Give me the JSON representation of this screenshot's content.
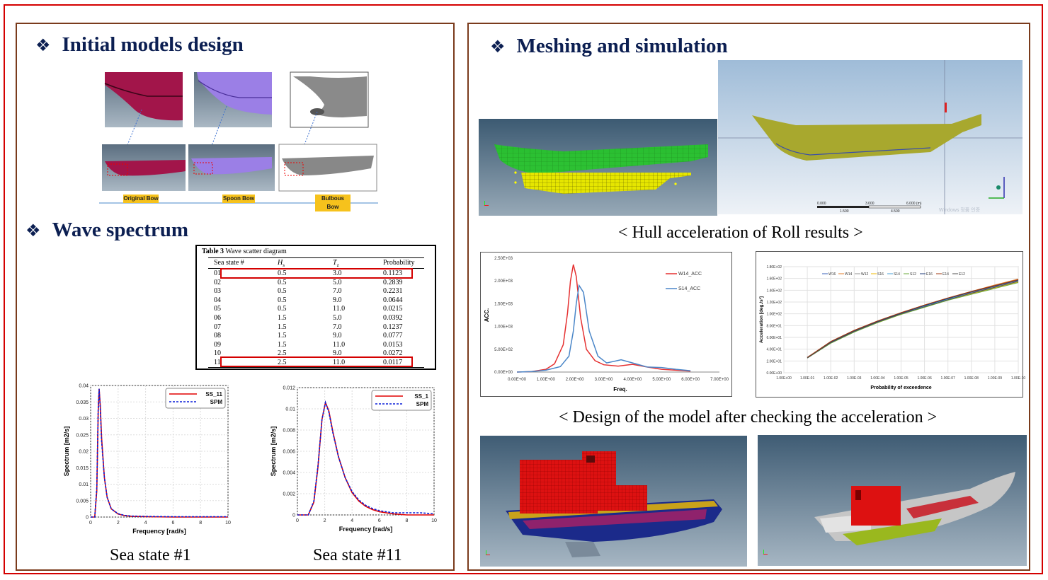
{
  "left_panel": {
    "title_models": "Initial models design",
    "title_wave": "Wave spectrum",
    "bullet": "❖",
    "bow_labels": [
      "Original Bow",
      "Spoon Bow",
      "Bulbous Bow"
    ],
    "caption_ss1": "Sea state #1",
    "caption_ss11": "Sea state #11"
  },
  "wave_table": {
    "title_bold": "Table 3",
    "title_rest": "Wave scatter diagram",
    "headers": [
      "Sea  state  #",
      "H",
      "T",
      "Probability"
    ],
    "header_subs": [
      "s",
      "z"
    ],
    "rows": [
      [
        "01",
        "0.5",
        "3.0",
        "0.1123"
      ],
      [
        "02",
        "0.5",
        "5.0",
        "0.2839"
      ],
      [
        "03",
        "0.5",
        "7.0",
        "0.2231"
      ],
      [
        "04",
        "0.5",
        "9.0",
        "0.0644"
      ],
      [
        "05",
        "0.5",
        "11.0",
        "0.0215"
      ],
      [
        "06",
        "1.5",
        "5.0",
        "0.0392"
      ],
      [
        "07",
        "1.5",
        "7.0",
        "0.1237"
      ],
      [
        "08",
        "1.5",
        "9.0",
        "0.0777"
      ],
      [
        "09",
        "1.5",
        "11.0",
        "0.0153"
      ],
      [
        "10",
        "2.5",
        "9.0",
        "0.0272"
      ],
      [
        "11",
        "2.5",
        "11.0",
        "0.0117"
      ]
    ],
    "highlighted_rows": [
      "01",
      "11"
    ],
    "highlight_color": "#d40000"
  },
  "right_panel": {
    "title": "Meshing and simulation",
    "caption_roll": "< Hull acceleration of Roll results >",
    "caption_design": "< Design of the model after checking the acceleration >",
    "scale_labels": [
      "0.000",
      "3.000",
      "6.000 (m)",
      "1.500",
      "4.500"
    ],
    "watermark": "Windows 정품 인증"
  },
  "chart_data": [
    {
      "type": "line",
      "id": "spectrum-ss1",
      "xlabel": "Frequency [rad/s]",
      "ylabel": "Spectrum [m2/s]",
      "xlim": [
        0,
        10
      ],
      "ylim": [
        0,
        0.04
      ],
      "x_ticks": [
        "0",
        "2",
        "4",
        "6",
        "8",
        "10"
      ],
      "y_ticks": [
        "0",
        "0.005",
        "0.01",
        "0.015",
        "0.02",
        "0.025",
        "0.03",
        "0.035",
        "0.04"
      ],
      "legend": "top-right",
      "x": [
        0,
        0.3,
        0.45,
        0.55,
        0.62,
        0.7,
        0.8,
        1.0,
        1.2,
        1.5,
        2.0,
        2.5,
        3,
        4,
        6,
        8,
        10
      ],
      "series": [
        {
          "name": "SS_11",
          "color": "#e00000",
          "style": "solid",
          "values": [
            0,
            0,
            0.008,
            0.032,
            0.039,
            0.034,
            0.024,
            0.012,
            0.006,
            0.0025,
            0.0009,
            0.0004,
            0.0002,
            0.0001,
            0,
            0,
            0
          ]
        },
        {
          "name": "SPM",
          "color": "#0a1fd8",
          "style": "dashed",
          "values": [
            0,
            0,
            0.009,
            0.033,
            0.039,
            0.033,
            0.023,
            0.012,
            0.006,
            0.0025,
            0.001,
            0.0005,
            0.0003,
            0.0002,
            0.0001,
            0.0001,
            0.0001
          ]
        }
      ]
    },
    {
      "type": "line",
      "id": "spectrum-ss11",
      "xlabel": "Frequency [rad/s]",
      "ylabel": "Spectrum [m2/s]",
      "xlim": [
        0,
        10
      ],
      "ylim": [
        0,
        0.012
      ],
      "x_ticks": [
        "0",
        "2",
        "4",
        "6",
        "8",
        "10"
      ],
      "y_ticks": [
        "0",
        "0.002",
        "0.004",
        "0.006",
        "0.008",
        "0.01",
        "0.012"
      ],
      "legend": "top-right",
      "x": [
        0,
        0.8,
        1.2,
        1.5,
        1.8,
        2.05,
        2.3,
        2.6,
        3.0,
        3.5,
        4,
        4.5,
        5,
        5.5,
        6,
        7,
        8,
        9,
        10
      ],
      "series": [
        {
          "name": "SS_1",
          "color": "#e00000",
          "style": "solid",
          "values": [
            0,
            0,
            0.0012,
            0.0045,
            0.009,
            0.0106,
            0.0098,
            0.0078,
            0.0055,
            0.0035,
            0.0021,
            0.0013,
            0.0008,
            0.0005,
            0.0003,
            0.0001,
            0,
            0,
            0
          ]
        },
        {
          "name": "SPM",
          "color": "#0a1fd8",
          "style": "dashed",
          "values": [
            0,
            0,
            0.0013,
            0.0046,
            0.009,
            0.0106,
            0.0097,
            0.0077,
            0.0055,
            0.0035,
            0.0022,
            0.0014,
            0.0009,
            0.0006,
            0.0004,
            0.0002,
            0.0002,
            0.0002,
            0.0001
          ]
        }
      ]
    },
    {
      "type": "line",
      "id": "roll-acc",
      "xlabel": "Freq.",
      "ylabel": "ACC.",
      "xlim": [
        0,
        7
      ],
      "ylim": [
        0,
        2500
      ],
      "x_ticks": [
        "0.00E+00",
        "1.00E+00",
        "2.00E+00",
        "3.00E+00",
        "4.00E+00",
        "5.00E+00",
        "6.00E+00",
        "7.00E+00"
      ],
      "y_ticks": [
        "0.00E+00",
        "5.00E+02",
        "1.00E+03",
        "1.50E+03",
        "2.00E+03",
        "2.50E+03"
      ],
      "legend": "top-right",
      "series": [
        {
          "name": "W14_ACC",
          "color": "#e53030",
          "x": [
            0,
            0.5,
            1.0,
            1.3,
            1.6,
            1.75,
            1.85,
            1.95,
            2.05,
            2.2,
            2.4,
            2.7,
            3.0,
            3.5,
            4.0,
            4.5,
            5.0,
            5.5,
            6.0
          ],
          "values": [
            0,
            10,
            60,
            180,
            600,
            1300,
            2000,
            2360,
            2100,
            1200,
            500,
            250,
            160,
            130,
            170,
            110,
            60,
            40,
            20
          ]
        },
        {
          "name": "S14_ACC",
          "color": "#4a86c8",
          "x": [
            0,
            0.5,
            1.0,
            1.5,
            1.8,
            1.95,
            2.05,
            2.15,
            2.3,
            2.5,
            2.8,
            3.1,
            3.4,
            3.6,
            4.0,
            4.5,
            5.0,
            5.5,
            6.0
          ],
          "values": [
            0,
            10,
            40,
            120,
            350,
            900,
            1500,
            1900,
            1750,
            900,
            350,
            200,
            240,
            270,
            200,
            110,
            100,
            60,
            30
          ]
        }
      ]
    },
    {
      "type": "line",
      "id": "exceedance",
      "xlabel": "Probability of exceedence",
      "ylabel": "Acceleration [deg./s²]",
      "ylim": [
        0,
        180
      ],
      "x_ticks": [
        "1.00E+00",
        "1.00E-01",
        "1.00E-02",
        "1.00E-03",
        "1.00E-04",
        "1.00E-05",
        "1.00E-06",
        "1.00E-07",
        "1.00E-08",
        "1.00E-09",
        "1.00E-10"
      ],
      "y_ticks": [
        "0.00E+00",
        "2.00E+01",
        "4.00E+01",
        "6.00E+01",
        "8.00E+01",
        "1.00E+02",
        "1.20E+02",
        "1.40E+02",
        "1.60E+02",
        "1.80E+02"
      ],
      "legend": "top",
      "x": [
        1,
        2,
        3,
        4,
        5,
        6,
        7,
        8,
        9,
        10
      ],
      "series": [
        {
          "name": "W16",
          "color": "#3a62b8",
          "values": [
            26,
            52,
            71,
            87,
            101,
            114,
            126,
            137,
            148,
            158
          ]
        },
        {
          "name": "W14",
          "color": "#e07b2a",
          "values": [
            26,
            53,
            72,
            88,
            102,
            115,
            127,
            138,
            149,
            159
          ]
        },
        {
          "name": "W12",
          "color": "#909090",
          "values": [
            26,
            52,
            71,
            86,
            100,
            113,
            125,
            136,
            146,
            156
          ]
        },
        {
          "name": "S16",
          "color": "#f0b800",
          "values": [
            25,
            51,
            70,
            85,
            99,
            112,
            124,
            134,
            144,
            154
          ]
        },
        {
          "name": "S14",
          "color": "#4aa0d8",
          "values": [
            25,
            51,
            70,
            86,
            100,
            113,
            125,
            135,
            145,
            155
          ]
        },
        {
          "name": "S12",
          "color": "#6aaa3a",
          "values": [
            25,
            50,
            69,
            85,
            99,
            111,
            123,
            133,
            143,
            153
          ]
        },
        {
          "name": "E16",
          "color": "#1c3a78",
          "values": [
            26,
            52,
            71,
            87,
            101,
            114,
            126,
            137,
            147,
            157
          ]
        },
        {
          "name": "E14",
          "color": "#a03a10",
          "values": [
            26,
            53,
            72,
            88,
            102,
            115,
            127,
            138,
            148,
            158
          ]
        },
        {
          "name": "E12",
          "color": "#505050",
          "values": [
            25,
            51,
            70,
            86,
            100,
            112,
            124,
            135,
            145,
            155
          ]
        }
      ]
    }
  ]
}
